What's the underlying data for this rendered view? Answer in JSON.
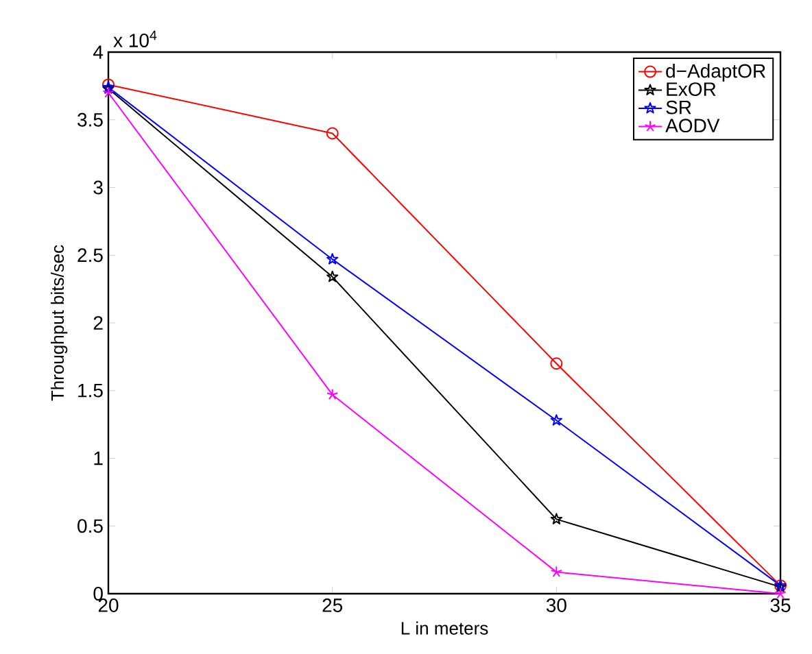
{
  "chart_data": {
    "type": "line",
    "x": [
      20,
      25,
      30,
      35
    ],
    "series": [
      {
        "name": "d−AdaptOR",
        "color": "#ff0000",
        "marker": "circle",
        "values": [
          3.76,
          3.4,
          1.7,
          0.06
        ]
      },
      {
        "name": "ExOR",
        "color": "#000000",
        "marker": "star",
        "values": [
          3.73,
          2.34,
          0.55,
          0.05
        ]
      },
      {
        "name": "SR",
        "color": "#0000ff",
        "marker": "star",
        "values": [
          3.74,
          2.47,
          1.28,
          0.06
        ]
      },
      {
        "name": "AODV",
        "color": "#ff00ff",
        "marker": "cross",
        "values": [
          3.7,
          1.47,
          0.16,
          0.0
        ]
      }
    ],
    "xlabel": "L in meters",
    "ylabel": "Throughput bits/sec",
    "annotations": [
      "x 10$^{4}$"
    ],
    "xlim": [
      20,
      35
    ],
    "xticks": [
      20,
      25,
      30,
      35
    ],
    "ylim": [
      0,
      4
    ],
    "yticks": [
      0,
      0.5,
      1,
      1.5,
      2,
      2.5,
      3,
      3.5,
      4
    ],
    "legend": "top right",
    "line_style": "solid"
  }
}
